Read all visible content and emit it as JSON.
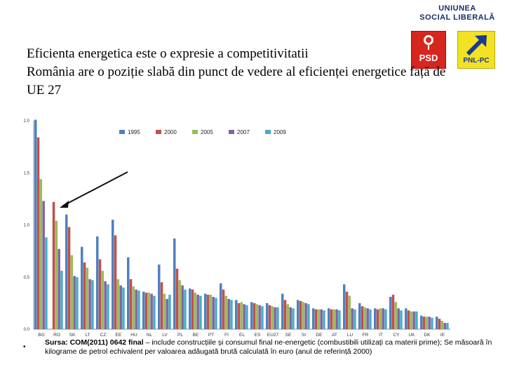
{
  "logo": {
    "title_line1": "UNIUNEA",
    "title_line2": "SOCIAL LIBERALĂ",
    "psd_label": "PSD",
    "pnl_label": "PNL-PC"
  },
  "heading": {
    "line1": "Eficienta energetica este o expresie a competitivitatii",
    "line2": "România are o poziție slabă din punct de vedere al eficienței energetice față de",
    "line3": "UE 27"
  },
  "source": {
    "bullet": "•",
    "label": "Sursa: COM(2011) 0642 final",
    "text": " – include construcțiile și consumul final ne-energetic (combustibili utilizați ca materii prime); Se măsoară în kilograme de petrol echivalent per valoarea adăugată brută calculată în euro (anul de referință 2000)"
  },
  "colors": {
    "1995": "#4f81bd",
    "2000": "#c0504d",
    "2005": "#9bbb59",
    "2007": "#8064a2",
    "2009": "#4bacc6"
  },
  "chart_data": {
    "type": "bar",
    "ylim": [
      0,
      2.0
    ],
    "yticks": [
      "0.0",
      "0.5",
      "1.0",
      "1.5",
      "2.0"
    ],
    "legend_position": "top",
    "categories": [
      "BG",
      "RO",
      "SK",
      "LT",
      "CZ",
      "EE",
      "HU",
      "NL",
      "LV",
      "PL",
      "BE",
      "PT",
      "FI",
      "EL",
      "ES",
      "EU27",
      "SE",
      "SI",
      "DE",
      "AT",
      "LU",
      "FR",
      "IT",
      "CY",
      "UK",
      "DK",
      "IE"
    ],
    "series": [
      {
        "name": "1995",
        "values": [
          2.01,
          null,
          1.1,
          0.79,
          0.89,
          1.05,
          0.69,
          0.36,
          0.62,
          0.87,
          0.39,
          0.34,
          0.44,
          0.28,
          0.26,
          0.25,
          0.34,
          0.28,
          0.2,
          0.2,
          0.43,
          0.25,
          0.2,
          0.31,
          0.2,
          0.13,
          0.12
        ]
      },
      {
        "name": "2000",
        "values": [
          1.84,
          1.22,
          0.98,
          0.64,
          0.67,
          0.9,
          0.48,
          0.35,
          0.45,
          0.58,
          0.38,
          0.33,
          0.38,
          0.25,
          0.25,
          0.23,
          0.28,
          0.27,
          0.19,
          0.19,
          0.36,
          0.22,
          0.19,
          0.33,
          0.18,
          0.12,
          0.1
        ]
      },
      {
        "name": "2005",
        "values": [
          1.44,
          1.04,
          0.71,
          0.59,
          0.56,
          0.48,
          0.41,
          0.35,
          0.34,
          0.47,
          0.35,
          0.33,
          0.32,
          0.26,
          0.24,
          0.22,
          0.24,
          0.26,
          0.19,
          0.19,
          0.32,
          0.21,
          0.2,
          0.26,
          0.17,
          0.12,
          0.08
        ]
      },
      {
        "name": "2007",
        "values": [
          1.23,
          0.77,
          0.51,
          0.48,
          0.46,
          0.42,
          0.38,
          0.34,
          0.29,
          0.42,
          0.33,
          0.31,
          0.29,
          0.24,
          0.23,
          0.21,
          0.21,
          0.25,
          0.19,
          0.19,
          0.2,
          0.2,
          0.2,
          0.2,
          0.17,
          0.12,
          0.06
        ]
      },
      {
        "name": "2009",
        "values": [
          0.88,
          0.56,
          0.5,
          0.47,
          0.43,
          0.4,
          0.37,
          0.32,
          0.33,
          0.38,
          0.32,
          0.3,
          0.28,
          0.23,
          0.22,
          0.21,
          0.2,
          0.24,
          0.18,
          0.18,
          0.19,
          0.19,
          0.19,
          0.18,
          0.17,
          0.11,
          0.06
        ]
      }
    ]
  }
}
